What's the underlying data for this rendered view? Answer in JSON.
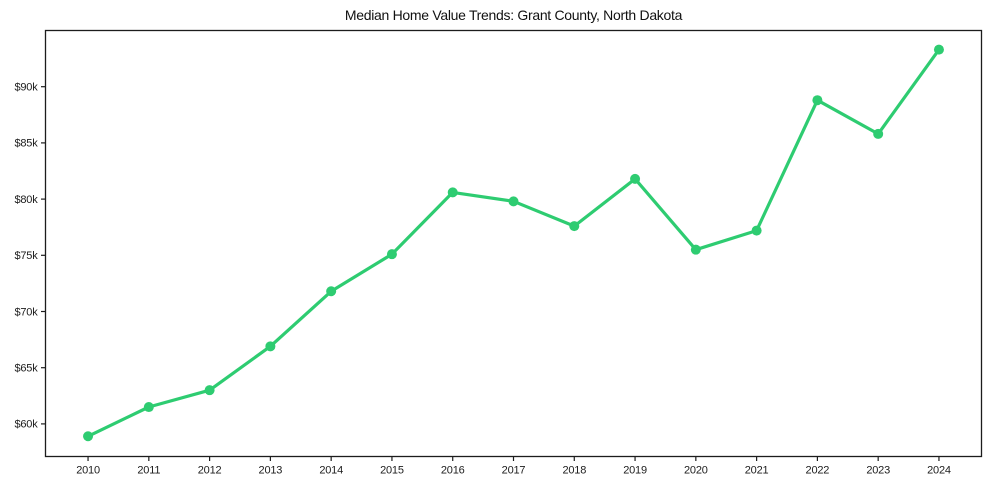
{
  "chart_data": {
    "type": "line",
    "title": "Median Home Value Trends: Grant County, North Dakota",
    "xlabel": "",
    "ylabel": "",
    "x": [
      2010,
      2011,
      2012,
      2013,
      2014,
      2015,
      2016,
      2017,
      2018,
      2019,
      2020,
      2021,
      2022,
      2023,
      2024
    ],
    "values": [
      58900,
      61500,
      63000,
      66900,
      71800,
      75100,
      80600,
      79800,
      77600,
      81800,
      75500,
      77200,
      88800,
      85800,
      93300
    ],
    "xlim": [
      2009.3,
      2024.7
    ],
    "ylim": [
      57100,
      95000
    ],
    "xticks": {
      "values": [
        2010,
        2011,
        2012,
        2013,
        2014,
        2015,
        2016,
        2017,
        2018,
        2019,
        2020,
        2021,
        2022,
        2023,
        2024
      ],
      "labels": [
        "2010",
        "2011",
        "2012",
        "2013",
        "2014",
        "2015",
        "2016",
        "2017",
        "2018",
        "2019",
        "2020",
        "2021",
        "2022",
        "2023",
        "2024"
      ]
    },
    "yticks": {
      "values": [
        60000,
        65000,
        70000,
        75000,
        80000,
        85000,
        90000
      ],
      "labels": [
        "$60k",
        "$65k",
        "$70k",
        "$75k",
        "$80k",
        "$85k",
        "$90k"
      ]
    },
    "grid": false,
    "legend": "none",
    "style": {
      "line_color": "#2ecc71",
      "marker": "circle",
      "marker_color": "#2ecc71",
      "line_width": 3.2,
      "marker_radius": 5,
      "background": "#ffffff",
      "axis_color": "#1c1c1c"
    }
  }
}
